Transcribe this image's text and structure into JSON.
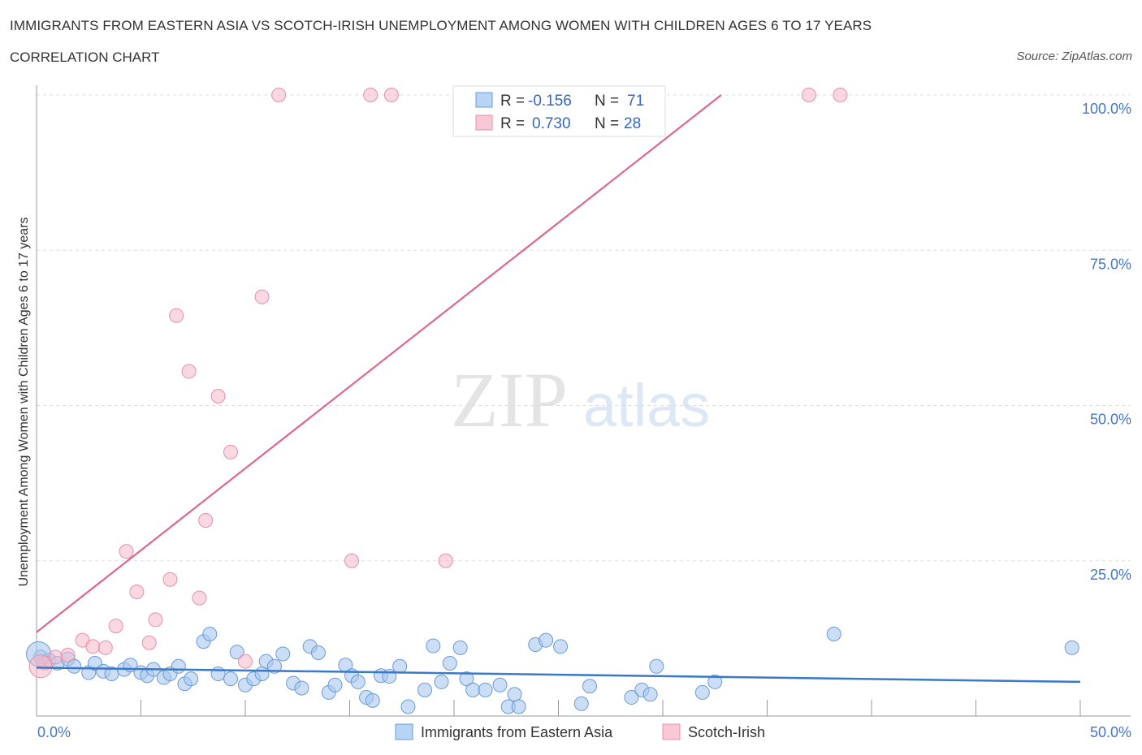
{
  "title": "IMMIGRANTS FROM EASTERN ASIA VS SCOTCH-IRISH UNEMPLOYMENT AMONG WOMEN WITH CHILDREN AGES 6 TO 17 YEARS",
  "subtitle": "CORRELATION CHART",
  "source": "Source: ZipAtlas.com",
  "watermark": {
    "zip": "ZIP",
    "atlas": "atlas"
  },
  "legend_top": {
    "r_label": "R =",
    "n_label": "N =",
    "series": [
      {
        "r": "-0.156",
        "n": "71"
      },
      {
        "r": "0.730",
        "n": "28"
      }
    ]
  },
  "chart_data": {
    "type": "scatter",
    "title": "IMMIGRANTS FROM EASTERN ASIA VS SCOTCH-IRISH UNEMPLOYMENT AMONG WOMEN WITH CHILDREN AGES 6 TO 17 YEARS",
    "xlabel": "",
    "ylabel": "Unemployment Among Women with Children Ages 6 to 17 years",
    "xlim": [
      0,
      50
    ],
    "ylim": [
      0,
      100
    ],
    "x_tick_labels": [
      "0.0%",
      "50.0%"
    ],
    "y_tick_labels": [
      "100.0%",
      "75.0%",
      "50.0%",
      "25.0%"
    ],
    "y_ticks": [
      100,
      75,
      50,
      25
    ],
    "colors": {
      "blue": "#a8c8f0",
      "blue_stroke": "#6b9bd8",
      "pink": "#f5b8c8",
      "pink_stroke": "#e890a8",
      "blue_line": "#3a78c8",
      "pink_line": "#e0668c"
    },
    "series": [
      {
        "name": "Immigrants from Eastern Asia",
        "trend": {
          "x": [
            0,
            50
          ],
          "y": [
            7.8,
            5.5
          ]
        },
        "points": [
          [
            0.2,
            9.5
          ],
          [
            0.6,
            9.0
          ],
          [
            1.0,
            8.5
          ],
          [
            1.5,
            9.2
          ],
          [
            1.8,
            8.0
          ],
          [
            2.5,
            7.0
          ],
          [
            2.8,
            8.5
          ],
          [
            3.2,
            7.2
          ],
          [
            3.6,
            6.8
          ],
          [
            4.2,
            7.5
          ],
          [
            4.5,
            8.2
          ],
          [
            5.0,
            7.0
          ],
          [
            5.3,
            6.5
          ],
          [
            5.6,
            7.5
          ],
          [
            6.1,
            6.2
          ],
          [
            6.4,
            6.8
          ],
          [
            6.8,
            8.0
          ],
          [
            7.1,
            5.2
          ],
          [
            7.4,
            6.0
          ],
          [
            8.0,
            12.0
          ],
          [
            8.3,
            13.2
          ],
          [
            8.7,
            6.8
          ],
          [
            9.3,
            6.0
          ],
          [
            9.6,
            10.3
          ],
          [
            10.0,
            5.0
          ],
          [
            10.4,
            6.0
          ],
          [
            10.8,
            6.8
          ],
          [
            11.0,
            8.8
          ],
          [
            11.4,
            8.0
          ],
          [
            11.8,
            10.0
          ],
          [
            12.3,
            5.3
          ],
          [
            12.7,
            4.5
          ],
          [
            13.1,
            11.2
          ],
          [
            13.5,
            10.2
          ],
          [
            14.0,
            3.8
          ],
          [
            14.3,
            5.0
          ],
          [
            14.8,
            8.2
          ],
          [
            15.1,
            6.5
          ],
          [
            15.4,
            5.5
          ],
          [
            15.8,
            3.0
          ],
          [
            16.1,
            2.5
          ],
          [
            16.5,
            6.5
          ],
          [
            16.9,
            6.4
          ],
          [
            17.4,
            8.0
          ],
          [
            17.8,
            1.5
          ],
          [
            18.6,
            4.2
          ],
          [
            19.0,
            11.3
          ],
          [
            19.4,
            5.5
          ],
          [
            19.8,
            8.5
          ],
          [
            20.3,
            11.0
          ],
          [
            20.6,
            6.0
          ],
          [
            20.9,
            4.2
          ],
          [
            21.5,
            4.2
          ],
          [
            22.2,
            5.0
          ],
          [
            22.6,
            1.5
          ],
          [
            22.9,
            3.5
          ],
          [
            23.1,
            1.5
          ],
          [
            23.9,
            11.5
          ],
          [
            24.4,
            12.2
          ],
          [
            25.1,
            11.2
          ],
          [
            26.1,
            2.0
          ],
          [
            26.5,
            4.8
          ],
          [
            28.5,
            3.0
          ],
          [
            29.0,
            4.2
          ],
          [
            29.4,
            3.5
          ],
          [
            29.7,
            8.0
          ],
          [
            31.9,
            3.8
          ],
          [
            32.5,
            5.5
          ],
          [
            38.2,
            13.2
          ],
          [
            49.6,
            11.0
          ],
          [
            0.1,
            10.0
          ]
        ]
      },
      {
        "name": "Scotch-Irish",
        "trend": {
          "x": [
            0,
            32.8
          ],
          "y": [
            13.5,
            100
          ]
        },
        "points": [
          [
            0.4,
            8.5
          ],
          [
            0.9,
            9.5
          ],
          [
            1.5,
            9.8
          ],
          [
            2.2,
            12.2
          ],
          [
            2.7,
            11.2
          ],
          [
            3.3,
            11.0
          ],
          [
            3.8,
            14.5
          ],
          [
            4.3,
            26.5
          ],
          [
            4.8,
            20.0
          ],
          [
            5.4,
            11.8
          ],
          [
            5.7,
            15.5
          ],
          [
            6.4,
            22.0
          ],
          [
            6.7,
            64.5
          ],
          [
            7.3,
            55.5
          ],
          [
            7.8,
            19.0
          ],
          [
            8.1,
            31.5
          ],
          [
            8.7,
            51.5
          ],
          [
            9.3,
            42.5
          ],
          [
            10.0,
            8.8
          ],
          [
            10.8,
            67.5
          ],
          [
            11.6,
            100
          ],
          [
            15.1,
            25.0
          ],
          [
            16.0,
            100
          ],
          [
            17.0,
            100
          ],
          [
            19.6,
            25.0
          ],
          [
            37.0,
            100
          ],
          [
            38.5,
            100
          ],
          [
            0.2,
            8.0
          ]
        ]
      }
    ]
  },
  "legend_bottom": [
    {
      "label": "Immigrants from Eastern Asia"
    },
    {
      "label": "Scotch-Irish"
    }
  ]
}
